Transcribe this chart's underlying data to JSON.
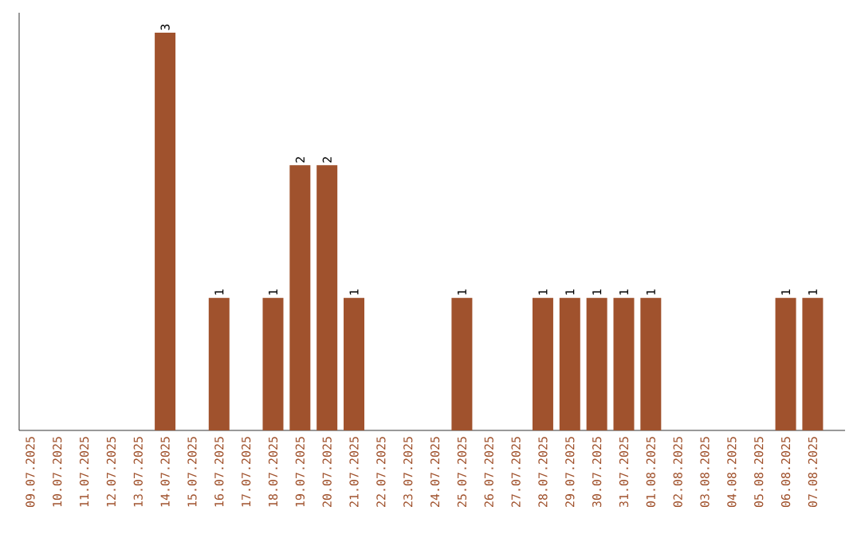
{
  "chart_data": {
    "type": "bar",
    "categories": [
      "09.07.2025",
      "10.07.2025",
      "11.07.2025",
      "12.07.2025",
      "13.07.2025",
      "14.07.2025",
      "15.07.2025",
      "16.07.2025",
      "17.07.2025",
      "18.07.2025",
      "19.07.2025",
      "20.07.2025",
      "21.07.2025",
      "22.07.2025",
      "23.07.2025",
      "24.07.2025",
      "25.07.2025",
      "26.07.2025",
      "27.07.2025",
      "28.07.2025",
      "29.07.2025",
      "30.07.2025",
      "31.07.2025",
      "01.08.2025",
      "02.08.2025",
      "03.08.2025",
      "04.08.2025",
      "05.08.2025",
      "06.08.2025",
      "07.08.2025"
    ],
    "values": [
      0,
      0,
      0,
      0,
      0,
      3,
      0,
      1,
      0,
      1,
      2,
      2,
      1,
      0,
      0,
      0,
      1,
      0,
      0,
      1,
      1,
      1,
      1,
      1,
      0,
      0,
      0,
      0,
      1,
      1
    ],
    "value_labels": [
      null,
      null,
      null,
      null,
      null,
      "3",
      null,
      "1",
      null,
      "1",
      "2",
      "2",
      "1",
      null,
      null,
      null,
      "1",
      null,
      null,
      "1",
      "1",
      "1",
      "1",
      "1",
      null,
      null,
      null,
      null,
      "1",
      "1"
    ],
    "color": "#a0522d",
    "tick_labels": "x"
  }
}
